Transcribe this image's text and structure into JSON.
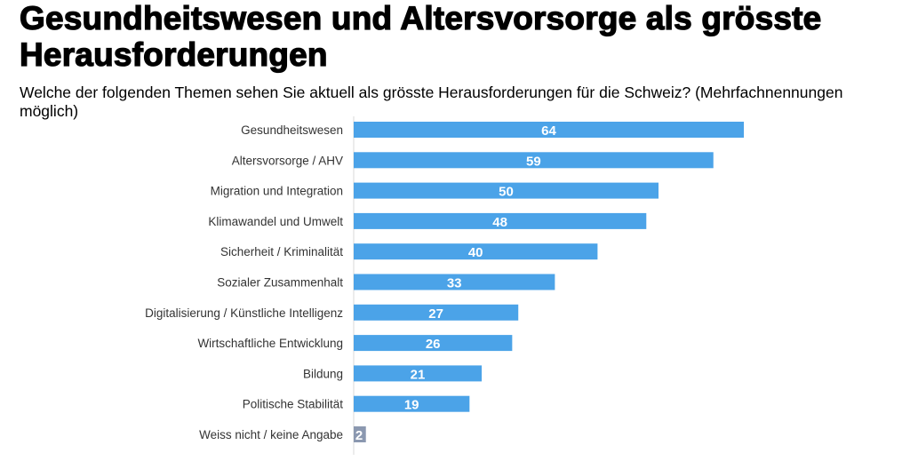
{
  "header": {
    "title": "Gesundheitswesen und Altersvorsorge als grösste Herausforderungen",
    "subtitle": "Welche der folgenden Themen sehen Sie aktuell als grösste Herausforderungen für die Schweiz? (Mehrfachnennungen möglich)"
  },
  "colors": {
    "bar": "#4ba3e8",
    "bar_muted": "#8b98b0",
    "axis": "#d9d9d9"
  },
  "chart_data": {
    "type": "bar",
    "orientation": "horizontal",
    "title": "Gesundheitswesen und Altersvorsorge als grösste Herausforderungen",
    "subtitle": "Welche der folgenden Themen sehen Sie aktuell als grösste Herausforderungen für die Schweiz? (Mehrfachnennungen möglich)",
    "categories": [
      "Gesundheitswesen",
      "Altersvorsorge / AHV",
      "Migration und Integration",
      "Klimawandel und Umwelt",
      "Sicherheit / Kriminalität",
      "Sozialer Zusammenhalt",
      "Digitalisierung / Künstliche Intelligenz",
      "Wirtschaftliche Entwicklung",
      "Bildung",
      "Politische Stabilität",
      "Weiss nicht / keine Angabe"
    ],
    "values": [
      64,
      59,
      50,
      48,
      40,
      33,
      27,
      26,
      21,
      19,
      2
    ],
    "xlabel": "",
    "ylabel": "",
    "xlim": [
      0,
      90
    ],
    "grid": false,
    "legend": "none"
  }
}
